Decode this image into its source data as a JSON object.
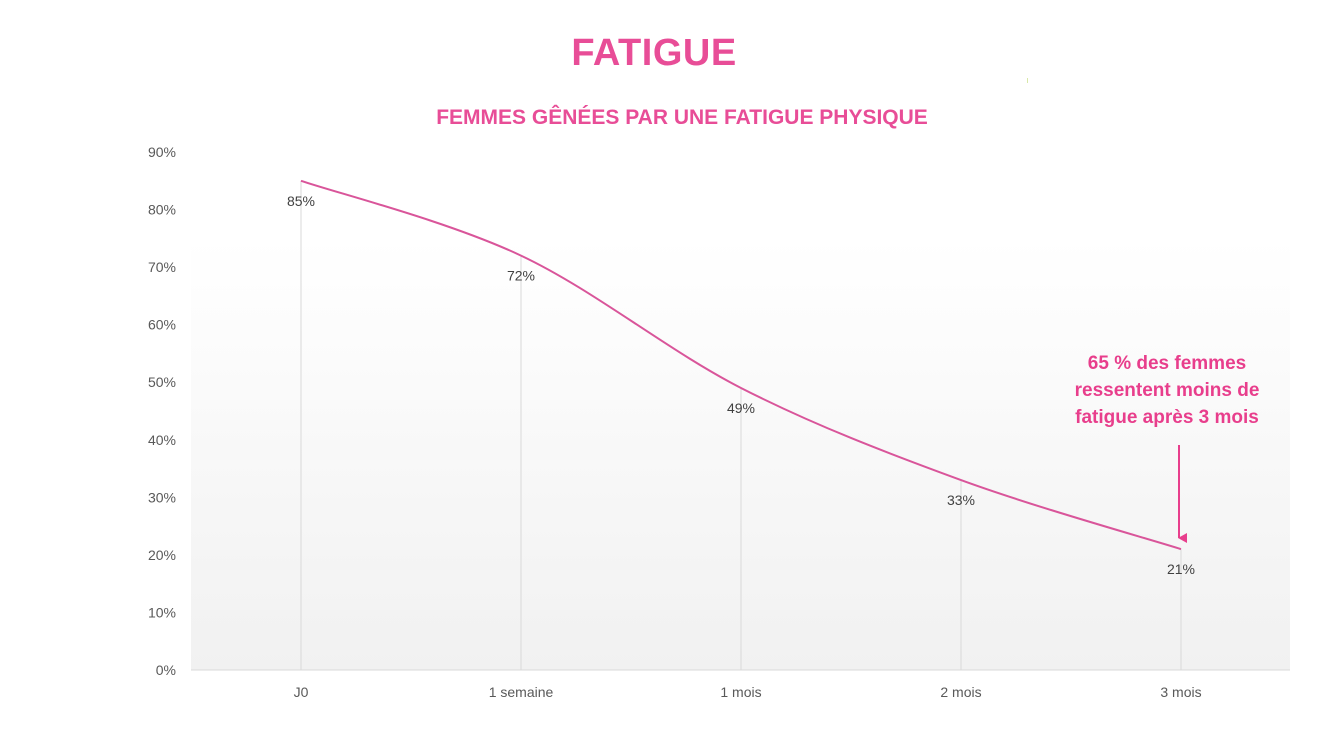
{
  "page": {
    "title": "FATIGUE"
  },
  "callout": {
    "lines": [
      "65 % des femmes",
      "ressentent moins de",
      "fatigue après 3 mois"
    ],
    "color": "#e83e8c"
  },
  "colors": {
    "accent": "#e84d97",
    "line": "#d9559a",
    "axis": "#d9d9d9",
    "text": "#595959"
  },
  "chart_data": {
    "type": "line",
    "title": "FEMMES GÊNÉES PAR UNE FATIGUE PHYSIQUE",
    "categories": [
      "J0",
      "1 semaine",
      "1 mois",
      "2 mois",
      "3 mois"
    ],
    "series": [
      {
        "values": [
          85,
          72,
          49,
          33,
          21
        ],
        "data_labels": [
          "85%",
          "72%",
          "49%",
          "33%",
          "21%"
        ],
        "smooth": true
      }
    ],
    "ylim": [
      0,
      90
    ],
    "y_ticks": [
      0,
      10,
      20,
      30,
      40,
      50,
      60,
      70,
      80,
      90
    ],
    "y_tick_labels": [
      "0%",
      "10%",
      "20%",
      "30%",
      "40%",
      "50%",
      "60%",
      "70%",
      "80%",
      "90%"
    ],
    "drop_lines": true,
    "grid": false,
    "legend": "none",
    "annotation": {
      "text": "65 % des femmes ressentent moins de fatigue après 3 mois",
      "target_category": "3 mois"
    }
  }
}
